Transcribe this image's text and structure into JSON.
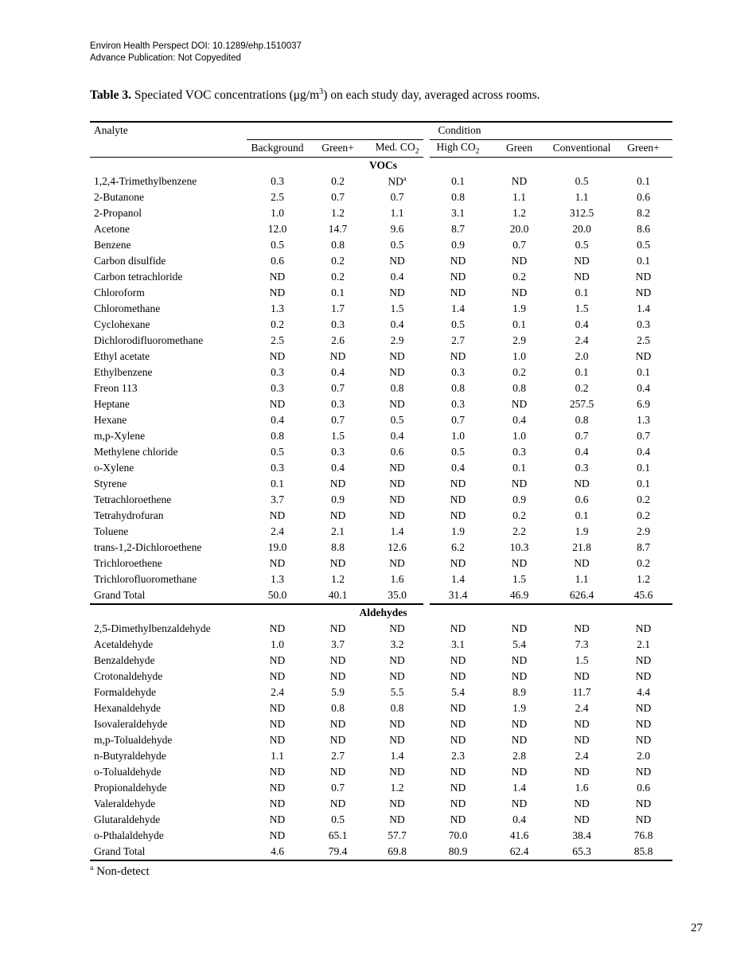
{
  "header": {
    "line1": "Environ Health Perspect DOI: 10.1289/ehp.1510037",
    "line2": "Advance Publication: Not Copyedited"
  },
  "title": {
    "label": "Table 3.",
    "pre": " Speciated VOC concentrations (μg/m",
    "sup": "3",
    "post": ") on each study day, averaged across rooms."
  },
  "table": {
    "analyte_header": "Analyte",
    "condition_header": "Condition",
    "columns": [
      {
        "text": "Background"
      },
      {
        "text": "Green+"
      },
      {
        "text": "Med. CO",
        "sub": "2"
      },
      {
        "text": "High CO",
        "sub": "2"
      },
      {
        "text": "Green"
      },
      {
        "text": "Conventional"
      },
      {
        "text": "Green+"
      }
    ],
    "sections": [
      {
        "name": "VOCs",
        "rows": [
          {
            "analyte": "1,2,4-Trimethylbenzene",
            "values": [
              "0.3",
              "0.2",
              "ND^a",
              "0.1",
              "ND",
              "0.5",
              "0.1"
            ]
          },
          {
            "analyte": "2-Butanone",
            "values": [
              "2.5",
              "0.7",
              "0.7",
              "0.8",
              "1.1",
              "1.1",
              "0.6"
            ]
          },
          {
            "analyte": "2-Propanol",
            "values": [
              "1.0",
              "1.2",
              "1.1",
              "3.1",
              "1.2",
              "312.5",
              "8.2"
            ]
          },
          {
            "analyte": "Acetone",
            "values": [
              "12.0",
              "14.7",
              "9.6",
              "8.7",
              "20.0",
              "20.0",
              "8.6"
            ]
          },
          {
            "analyte": "Benzene",
            "values": [
              "0.5",
              "0.8",
              "0.5",
              "0.9",
              "0.7",
              "0.5",
              "0.5"
            ]
          },
          {
            "analyte": "Carbon disulfide",
            "values": [
              "0.6",
              "0.2",
              "ND",
              "ND",
              "ND",
              "ND",
              "0.1"
            ]
          },
          {
            "analyte": "Carbon tetrachloride",
            "values": [
              "ND",
              "0.2",
              "0.4",
              "ND",
              "0.2",
              "ND",
              "ND"
            ]
          },
          {
            "analyte": "Chloroform",
            "values": [
              "ND",
              "0.1",
              "ND",
              "ND",
              "ND",
              "0.1",
              "ND"
            ]
          },
          {
            "analyte": "Chloromethane",
            "values": [
              "1.3",
              "1.7",
              "1.5",
              "1.4",
              "1.9",
              "1.5",
              "1.4"
            ]
          },
          {
            "analyte": "Cyclohexane",
            "values": [
              "0.2",
              "0.3",
              "0.4",
              "0.5",
              "0.1",
              "0.4",
              "0.3"
            ]
          },
          {
            "analyte": "Dichlorodifluoromethane",
            "values": [
              "2.5",
              "2.6",
              "2.9",
              "2.7",
              "2.9",
              "2.4",
              "2.5"
            ]
          },
          {
            "analyte": "Ethyl acetate",
            "values": [
              "ND",
              "ND",
              "ND",
              "ND",
              "1.0",
              "2.0",
              "ND"
            ]
          },
          {
            "analyte": "Ethylbenzene",
            "values": [
              "0.3",
              "0.4",
              "ND",
              "0.3",
              "0.2",
              "0.1",
              "0.1"
            ]
          },
          {
            "analyte": "Freon 113",
            "values": [
              "0.3",
              "0.7",
              "0.8",
              "0.8",
              "0.8",
              "0.2",
              "0.4"
            ]
          },
          {
            "analyte": "Heptane",
            "values": [
              "ND",
              "0.3",
              "ND",
              "0.3",
              "ND",
              "257.5",
              "6.9"
            ]
          },
          {
            "analyte": "Hexane",
            "values": [
              "0.4",
              "0.7",
              "0.5",
              "0.7",
              "0.4",
              "0.8",
              "1.3"
            ]
          },
          {
            "analyte": "m,p-Xylene",
            "values": [
              "0.8",
              "1.5",
              "0.4",
              "1.0",
              "1.0",
              "0.7",
              "0.7"
            ]
          },
          {
            "analyte": "Methylene chloride",
            "values": [
              "0.5",
              "0.3",
              "0.6",
              "0.5",
              "0.3",
              "0.4",
              "0.4"
            ]
          },
          {
            "analyte": "o-Xylene",
            "values": [
              "0.3",
              "0.4",
              "ND",
              "0.4",
              "0.1",
              "0.3",
              "0.1"
            ]
          },
          {
            "analyte": "Styrene",
            "values": [
              "0.1",
              "ND",
              "ND",
              "ND",
              "ND",
              "ND",
              "0.1"
            ]
          },
          {
            "analyte": "Tetrachloroethene",
            "values": [
              "3.7",
              "0.9",
              "ND",
              "ND",
              "0.9",
              "0.6",
              "0.2"
            ]
          },
          {
            "analyte": "Tetrahydrofuran",
            "values": [
              "ND",
              "ND",
              "ND",
              "ND",
              "0.2",
              "0.1",
              "0.2"
            ]
          },
          {
            "analyte": "Toluene",
            "values": [
              "2.4",
              "2.1",
              "1.4",
              "1.9",
              "2.2",
              "1.9",
              "2.9"
            ]
          },
          {
            "analyte": "trans-1,2-Dichloroethene",
            "values": [
              "19.0",
              "8.8",
              "12.6",
              "6.2",
              "10.3",
              "21.8",
              "8.7"
            ]
          },
          {
            "analyte": "Trichloroethene",
            "values": [
              "ND",
              "ND",
              "ND",
              "ND",
              "ND",
              "ND",
              "0.2"
            ]
          },
          {
            "analyte": "Trichlorofluoromethane",
            "values": [
              "1.3",
              "1.2",
              "1.6",
              "1.4",
              "1.5",
              "1.1",
              "1.2"
            ]
          },
          {
            "analyte": "Grand Total",
            "values": [
              "50.0",
              "40.1",
              "35.0",
              "31.4",
              "46.9",
              "626.4",
              "45.6"
            ]
          }
        ]
      },
      {
        "name": "Aldehydes",
        "rows": [
          {
            "analyte": "2,5-Dimethylbenzaldehyde",
            "values": [
              "ND",
              "ND",
              "ND",
              "ND",
              "ND",
              "ND",
              "ND"
            ]
          },
          {
            "analyte": "Acetaldehyde",
            "values": [
              "1.0",
              "3.7",
              "3.2",
              "3.1",
              "5.4",
              "7.3",
              "2.1"
            ]
          },
          {
            "analyte": "Benzaldehyde",
            "values": [
              "ND",
              "ND",
              "ND",
              "ND",
              "ND",
              "1.5",
              "ND"
            ]
          },
          {
            "analyte": "Crotonaldehyde",
            "values": [
              "ND",
              "ND",
              "ND",
              "ND",
              "ND",
              "ND",
              "ND"
            ]
          },
          {
            "analyte": "Formaldehyde",
            "values": [
              "2.4",
              "5.9",
              "5.5",
              "5.4",
              "8.9",
              "11.7",
              "4.4"
            ]
          },
          {
            "analyte": "Hexanaldehyde",
            "values": [
              "ND",
              "0.8",
              "0.8",
              "ND",
              "1.9",
              "2.4",
              "ND"
            ]
          },
          {
            "analyte": "Isovaleraldehyde",
            "values": [
              "ND",
              "ND",
              "ND",
              "ND",
              "ND",
              "ND",
              "ND"
            ]
          },
          {
            "analyte": "m,p-Tolualdehyde",
            "values": [
              "ND",
              "ND",
              "ND",
              "ND",
              "ND",
              "ND",
              "ND"
            ]
          },
          {
            "analyte": "n-Butyraldehyde",
            "values": [
              "1.1",
              "2.7",
              "1.4",
              "2.3",
              "2.8",
              "2.4",
              "2.0"
            ]
          },
          {
            "analyte": "o-Tolualdehyde",
            "values": [
              "ND",
              "ND",
              "ND",
              "ND",
              "ND",
              "ND",
              "ND"
            ]
          },
          {
            "analyte": "Propionaldehyde",
            "values": [
              "ND",
              "0.7",
              "1.2",
              "ND",
              "1.4",
              "1.6",
              "0.6"
            ]
          },
          {
            "analyte": "Valeraldehyde",
            "values": [
              "ND",
              "ND",
              "ND",
              "ND",
              "ND",
              "ND",
              "ND"
            ]
          },
          {
            "analyte": "Glutaraldehyde",
            "values": [
              "ND",
              "0.5",
              "ND",
              "ND",
              "0.4",
              "ND",
              "ND"
            ]
          },
          {
            "analyte": "o-Pthalaldehyde",
            "values": [
              "ND",
              "65.1",
              "57.7",
              "70.0",
              "41.6",
              "38.4",
              "76.8"
            ]
          },
          {
            "analyte": "Grand Total",
            "values": [
              "4.6",
              "79.4",
              "69.8",
              "80.9",
              "62.4",
              "65.3",
              "85.8"
            ]
          }
        ]
      }
    ]
  },
  "footnote": {
    "sup": "a",
    "text": "Non-detect"
  },
  "page_number": "27"
}
